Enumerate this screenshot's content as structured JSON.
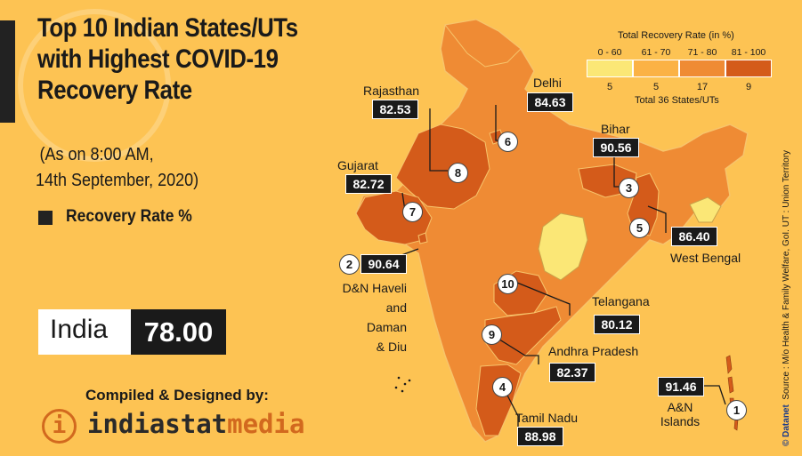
{
  "title_lines": [
    "Top 10 Indian States/UTs",
    "with Highest COVID-19",
    "Recovery Rate"
  ],
  "as_on": [
    "(As on 8:00 AM,",
    "14th September, 2020)"
  ],
  "legend_label": "Recovery Rate %",
  "india": {
    "label": "India",
    "value": "78.00"
  },
  "compiled_by": "Compiled & Designed by:",
  "brand": {
    "part1": "indiastat",
    "part2": "media"
  },
  "logo_glyph": "i",
  "color_legend": {
    "title": "Total Recovery Rate (in %)",
    "total": "Total 36 States/UTs",
    "classes": [
      {
        "range": "0 - 60",
        "count": "5",
        "color": "#fbe776"
      },
      {
        "range": "61 - 70",
        "count": "5",
        "color": "#fbb245"
      },
      {
        "range": "71 - 80",
        "count": "17",
        "color": "#ef8b34"
      },
      {
        "range": "81 - 100",
        "count": "9",
        "color": "#d45b1a"
      }
    ]
  },
  "states": [
    {
      "rank": "1",
      "name": "A&N Islands",
      "value": "91.46"
    },
    {
      "rank": "2",
      "name": "D&N Haveli and Daman & Diu",
      "value": "90.64"
    },
    {
      "rank": "3",
      "name": "Bihar",
      "value": "90.56"
    },
    {
      "rank": "4",
      "name": "Tamil Nadu",
      "value": "88.98"
    },
    {
      "rank": "5",
      "name": "West Bengal",
      "value": "86.40"
    },
    {
      "rank": "6",
      "name": "Delhi",
      "value": "84.63"
    },
    {
      "rank": "7",
      "name": "Gujarat",
      "value": "82.72"
    },
    {
      "rank": "8",
      "name": "Rajasthan",
      "value": "82.53"
    },
    {
      "rank": "9",
      "name": "Andhra Pradesh",
      "value": "82.37"
    },
    {
      "rank": "10",
      "name": "Telangana",
      "value": "80.12"
    }
  ],
  "dnh_label_lines": [
    "D&N Haveli",
    "and",
    "Daman",
    "& Diu"
  ],
  "an_label_lines": [
    "A&N",
    "Islands"
  ],
  "source": "Source : M/o Health & Family Welfare, GoI.  UT : Union Territory",
  "credit": "© Datanet",
  "colors": {
    "background": "#fdc353",
    "dark": "#1a1a1a",
    "brand_orange": "#d2691e"
  }
}
